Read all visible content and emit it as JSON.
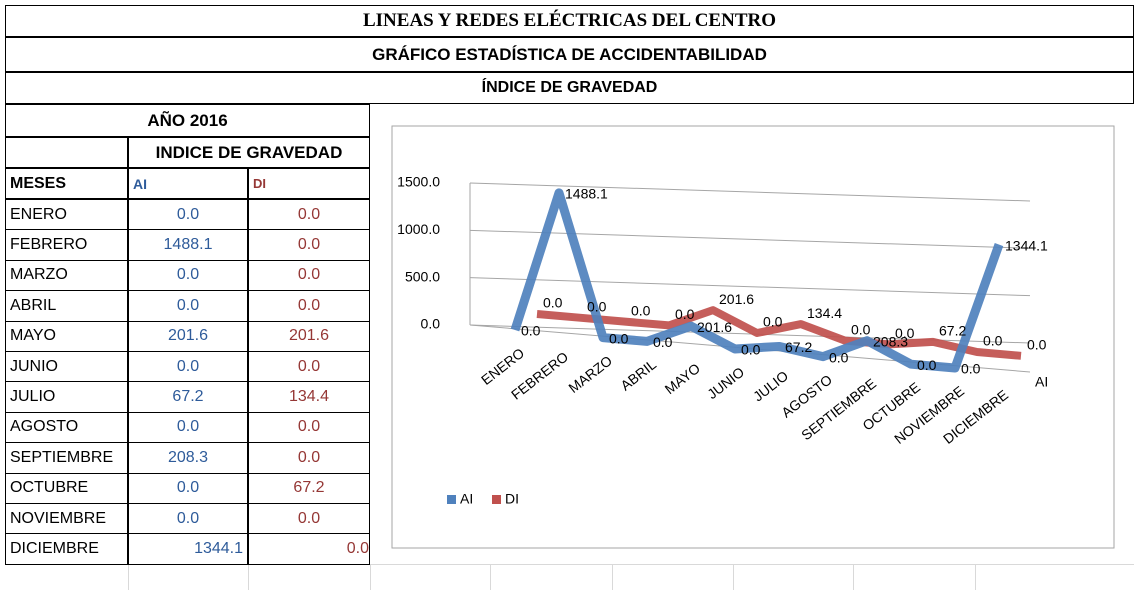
{
  "header": {
    "title": "LINEAS Y REDES ELÉCTRICAS DEL CENTRO",
    "subtitle": "GRÁFICO  ESTADÍSTICA DE ACCIDENTABILIDAD",
    "section": "ÍNDICE DE GRAVEDAD"
  },
  "table": {
    "year": "AÑO 2016",
    "group": "INDICE DE GRAVEDAD",
    "columns": [
      "MESES",
      "AI",
      "DI"
    ],
    "rows": [
      [
        "ENERO",
        "0.0",
        "0.0"
      ],
      [
        "FEBRERO",
        "1488.1",
        "0.0"
      ],
      [
        "MARZO",
        "0.0",
        "0.0"
      ],
      [
        "ABRIL",
        "0.0",
        "0.0"
      ],
      [
        "MAYO",
        "201.6",
        "201.6"
      ],
      [
        "JUNIO",
        "0.0",
        "0.0"
      ],
      [
        "JULIO",
        "67.2",
        "134.4"
      ],
      [
        "AGOSTO",
        "0.0",
        "0.0"
      ],
      [
        "SEPTIEMBRE",
        "208.3",
        "0.0"
      ],
      [
        "OCTUBRE",
        "0.0",
        "67.2"
      ],
      [
        "NOVIEMBRE",
        "0.0",
        "0.0"
      ],
      [
        "DICIEMBRE",
        "1344.1",
        "0.0"
      ]
    ]
  },
  "chart_data": {
    "type": "line",
    "categories": [
      "ENERO",
      "FEBRERO",
      "MARZO",
      "ABRIL",
      "MAYO",
      "JUNIO",
      "JULIO",
      "AGOSTO",
      "SEPTIEMBRE",
      "OCTUBRE",
      "NOVIEMBRE",
      "DICIEMBRE"
    ],
    "series": [
      {
        "name": "AI",
        "color": "#4f81bd",
        "values": [
          0,
          1488.1,
          0,
          0,
          201.6,
          0,
          67.2,
          0,
          208.3,
          0,
          0,
          1344.1
        ],
        "value_labels": [
          "0.0",
          "1488.1",
          "0.0",
          "0.0",
          "201.6",
          "0.0",
          "67.2",
          "0.0",
          "208.3",
          "0.0",
          "0.0",
          "1344.1"
        ]
      },
      {
        "name": "DI",
        "color": "#c0504d",
        "values": [
          0,
          0,
          0,
          0,
          201.6,
          0,
          134.4,
          0,
          0,
          67.2,
          0,
          0
        ],
        "value_labels": [
          "0.0",
          "0.0",
          "0.0",
          "0.0",
          "201.6",
          "0.0",
          "134.4",
          "0.0",
          "0.0",
          "67.2",
          "0.0",
          "0.0"
        ]
      }
    ],
    "ylim": [
      0,
      1500
    ],
    "yticks": [
      {
        "value": 0,
        "label": "0.0"
      },
      {
        "value": 500,
        "label": "500.0"
      },
      {
        "value": 1000,
        "label": "1000.0"
      },
      {
        "value": 1500,
        "label": "1500.0"
      }
    ],
    "grid": true,
    "legend": "bottom-left"
  }
}
